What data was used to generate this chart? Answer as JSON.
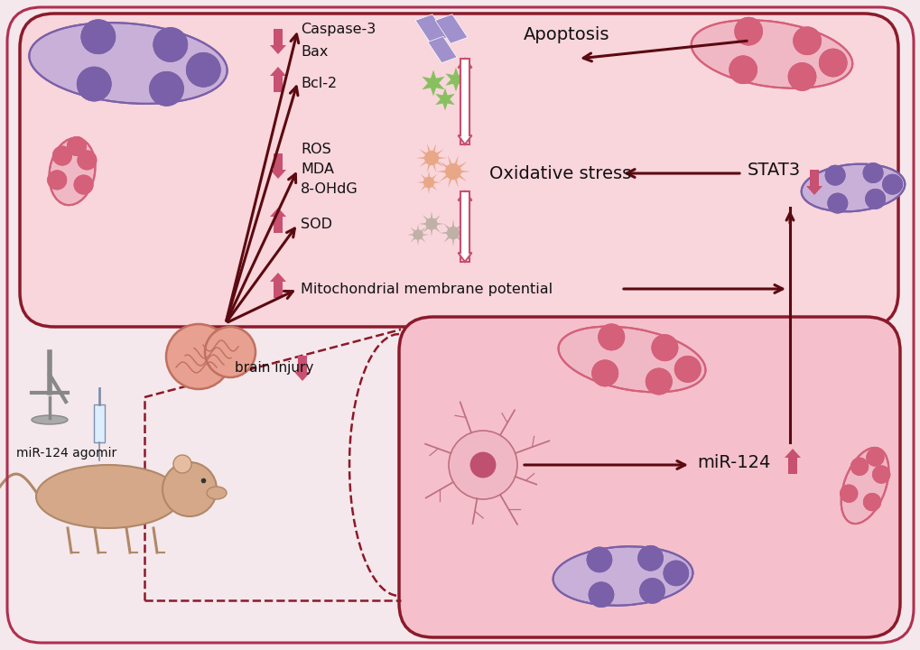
{
  "bg_color": "#f5e8ec",
  "top_cell_fill": "#f9d5dc",
  "top_cell_edge": "#8b1a2a",
  "bot_cell_fill": "#f5c0cc",
  "bot_cell_edge": "#8b1a2a",
  "outer_border_edge": "#b03050",
  "pink_arrow_color": "#c85070",
  "dark_arrow_color": "#5a0a10",
  "text_color": "#111111",
  "mito_pink_outer": "#f0b8c4",
  "mito_pink_inner": "#d4607a",
  "mito_purple_outer": "#c8b0d8",
  "mito_purple_inner": "#7a60a8",
  "star_color": "#88c060",
  "rhombus_color": "#a090cc",
  "spiky_ros_color": "#e8a888",
  "spiky_sod_color": "#c0b0a8",
  "neuron_body": "#f0b8c4",
  "neuron_nucleus": "#c05070",
  "neuron_edge": "#c07080",
  "brain_color": "#e8a090",
  "brain_edge": "#c07060",
  "rat_color": "#d4a888",
  "rat_edge": "#b08868",
  "labels": {
    "caspase": "Caspase-3",
    "bax": "Bax",
    "bcl2": "Bcl-2",
    "ros": "ROS",
    "mda": "MDA",
    "ohdg": "8-OHdG",
    "sod": "SOD",
    "mmp": "Mitochondrial membrane potential",
    "apoptosis": "Apoptosis",
    "oxidative": "Oxidative stress",
    "stat3": "STAT3",
    "mir124": "miR-124",
    "brain_injury": "brain injury",
    "agomir": "miR-124 agomir"
  }
}
